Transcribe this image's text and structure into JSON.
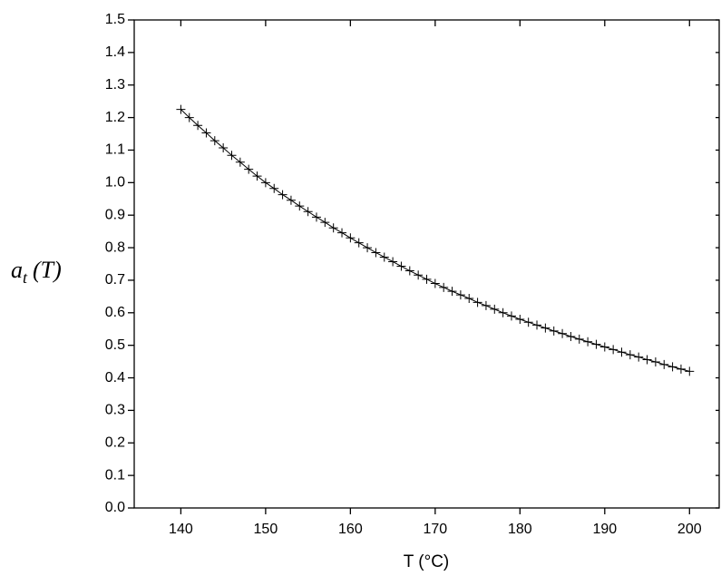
{
  "chart_data": {
    "type": "line",
    "x_label": "T (°C)",
    "y_label": [
      "a",
      "t",
      "(T)"
    ],
    "x": [
      140,
      141,
      142,
      143,
      144,
      145,
      146,
      147,
      148,
      149,
      150,
      151,
      152,
      153,
      154,
      155,
      156,
      157,
      158,
      159,
      160,
      161,
      162,
      163,
      164,
      165,
      166,
      167,
      168,
      169,
      170,
      171,
      172,
      173,
      174,
      175,
      176,
      177,
      178,
      179,
      180,
      181,
      182,
      183,
      184,
      185,
      186,
      187,
      188,
      189,
      190,
      191,
      192,
      193,
      194,
      195,
      196,
      197,
      198,
      199,
      200
    ],
    "values": [
      1.225,
      1.2,
      1.176,
      1.153,
      1.129,
      1.107,
      1.084,
      1.063,
      1.041,
      1.02,
      1.0,
      0.982,
      0.963,
      0.946,
      0.928,
      0.911,
      0.894,
      0.878,
      0.861,
      0.846,
      0.83,
      0.815,
      0.8,
      0.785,
      0.771,
      0.757,
      0.743,
      0.729,
      0.716,
      0.703,
      0.69,
      0.678,
      0.666,
      0.655,
      0.644,
      0.632,
      0.622,
      0.611,
      0.6,
      0.59,
      0.58,
      0.571,
      0.562,
      0.553,
      0.544,
      0.536,
      0.527,
      0.519,
      0.511,
      0.503,
      0.495,
      0.487,
      0.479,
      0.471,
      0.464,
      0.456,
      0.449,
      0.441,
      0.434,
      0.427,
      0.42
    ],
    "color": "#000000",
    "marker": "+",
    "xlim": [
      134.5,
      203.5
    ],
    "ylim": [
      0,
      1.5
    ],
    "xticks": [
      140,
      150,
      160,
      170,
      180,
      190,
      200
    ],
    "yticks": [
      {
        "value": 0,
        "label": "0.0"
      },
      0.1,
      0.2,
      0.3,
      0.4,
      0.5,
      0.6,
      0.7,
      0.8,
      0.9,
      {
        "value": 1,
        "label": "1.0"
      },
      1.1,
      1.2,
      1.3,
      1.4,
      1.5
    ]
  }
}
